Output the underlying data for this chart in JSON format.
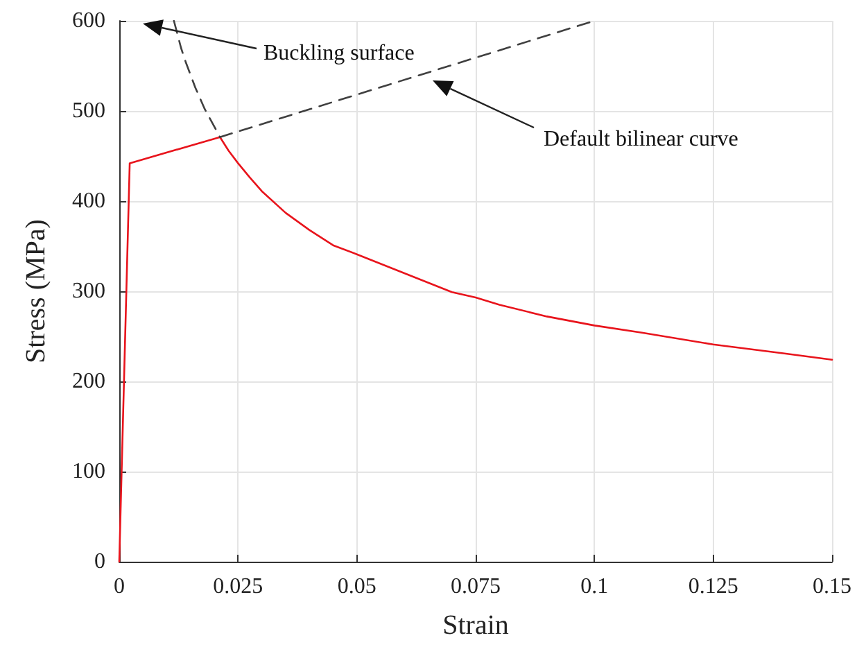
{
  "chart_data": {
    "type": "line",
    "xlabel": "Strain",
    "ylabel": "Stress (MPa)",
    "xlim": [
      0,
      0.15
    ],
    "xticks": [
      0,
      0.025,
      0.05,
      0.075,
      0.1,
      0.125,
      0.15
    ],
    "ylim": [
      0,
      600
    ],
    "yticks": [
      0,
      100,
      200,
      300,
      400,
      500,
      600
    ],
    "grid": true,
    "marker": "none",
    "series": [
      {
        "color": "#e8141c",
        "line_style": "solid",
        "x": [
          0,
          0.0022,
          0.0212,
          0.023,
          0.025,
          0.0275,
          0.03,
          0.035,
          0.04,
          0.045,
          0.05,
          0.06,
          0.07,
          0.075,
          0.08,
          0.09,
          0.1,
          0.11,
          0.125,
          0.14,
          0.15
        ],
        "values": [
          0,
          442,
          471,
          456,
          442,
          426,
          411,
          387,
          368,
          351,
          341,
          320,
          299,
          293,
          285,
          272,
          262,
          254,
          241,
          231,
          224
        ]
      },
      {
        "color": "#404040",
        "line_style": "dashed",
        "x": [
          0.0115,
          0.013,
          0.014,
          0.016,
          0.018,
          0.0212
        ],
        "values": [
          600,
          570,
          554,
          526,
          502,
          471
        ]
      },
      {
        "color": "#404040",
        "line_style": "dashed",
        "x": [
          0.0212,
          0.1
        ],
        "values": [
          471,
          600
        ]
      }
    ],
    "annotations": [
      "Buckling surface",
      "Default bilinear curve"
    ]
  }
}
